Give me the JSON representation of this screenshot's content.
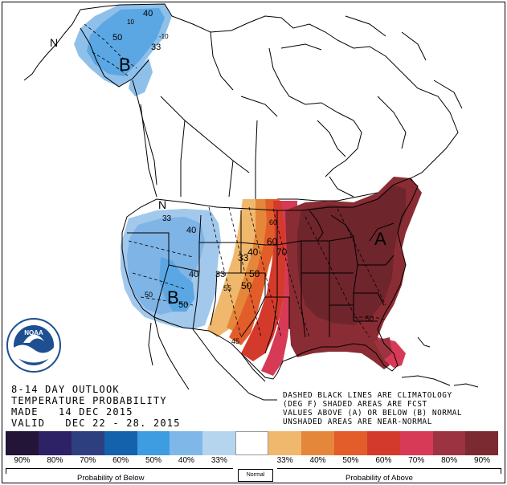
{
  "title_lines": [
    "8-14 DAY OUTLOOK",
    "TEMPERATURE PROBABILITY",
    "MADE   14 DEC 2015",
    "VALID   DEC 22 - 28. 2015"
  ],
  "note_lines": [
    "DASHED BLACK LINES ARE CLIMATOLOGY",
    "(DEG F) SHADED AREAS ARE FCST",
    "VALUES ABOVE (A) OR BELOW (B) NORMAL",
    "UNSHADED AREAS ARE NEAR-NORMAL"
  ],
  "legend": {
    "colors": [
      "#221538",
      "#2d2265",
      "#2e3f80",
      "#1462ac",
      "#3d9de0",
      "#7fb8e8",
      "#b5d5ef",
      "#ffffff",
      "#f0b86c",
      "#e5873a",
      "#e35d2a",
      "#d43a2c",
      "#d73a56",
      "#9c3340",
      "#7a2a30"
    ],
    "labels": [
      "90%",
      "80%",
      "70%",
      "60%",
      "50%",
      "40%",
      "33%",
      "",
      "33%",
      "40%",
      "50%",
      "60%",
      "70%",
      "80%",
      "90%"
    ],
    "below_caption": "Probability of Below",
    "normal_label": "Normal",
    "above_caption": "Probability of Above"
  },
  "map_labels": {
    "below_markers": [
      "B",
      "B"
    ],
    "above_markers": [
      "A"
    ],
    "near_normal_markers": [
      "N",
      "N"
    ],
    "alaska_contours": [
      "40",
      "50",
      "33",
      "10",
      "-10"
    ],
    "west_contours": [
      "33",
      "40",
      "40",
      "50",
      "50",
      "33"
    ],
    "central_contours": [
      "33",
      "40",
      "50",
      "50",
      "60",
      "70",
      "50",
      "45",
      "55",
      "60"
    ]
  },
  "logo_text": "NOAA"
}
